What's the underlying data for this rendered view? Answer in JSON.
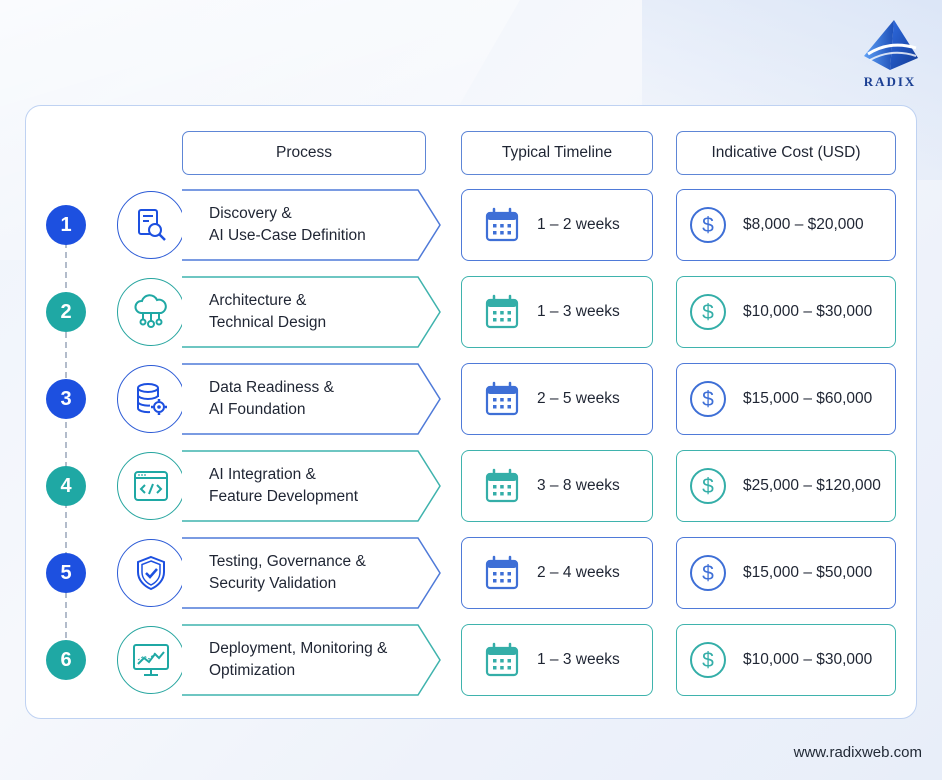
{
  "brand": {
    "logo_text": "RADIX",
    "website": "www.radixweb.com"
  },
  "headers": {
    "process": "Process",
    "timeline": "Typical Timeline",
    "cost": "Indicative Cost (USD)"
  },
  "colors": {
    "blue": "#1d50e0",
    "teal": "#1fa8a4",
    "border_blue": "#4f7ad8",
    "border_teal": "#3fb3ad"
  },
  "steps": [
    {
      "number": "1",
      "theme": "blue",
      "icon": "document-search-icon",
      "line1": "Discovery &",
      "line2": "AI Use-Case Definition",
      "timeline": "1 – 2 weeks",
      "cost": "$8,000 – $20,000"
    },
    {
      "number": "2",
      "theme": "teal",
      "icon": "cloud-network-icon",
      "line1": "Architecture &",
      "line2": "Technical Design",
      "timeline": "1 – 3 weeks",
      "cost": "$10,000 – $30,000"
    },
    {
      "number": "3",
      "theme": "blue",
      "icon": "database-gear-icon",
      "line1": "Data Readiness &",
      "line2": "AI Foundation",
      "timeline": "2 – 5 weeks",
      "cost": "$15,000 – $60,000"
    },
    {
      "number": "4",
      "theme": "teal",
      "icon": "code-window-icon",
      "line1": "AI Integration &",
      "line2": "Feature Development",
      "timeline": "3 – 8 weeks",
      "cost": "$25,000 – $120,000"
    },
    {
      "number": "5",
      "theme": "blue",
      "icon": "shield-check-icon",
      "line1": "Testing, Governance &",
      "line2": "Security Validation",
      "timeline": "2 – 4 weeks",
      "cost": "$15,000 – $50,000"
    },
    {
      "number": "6",
      "theme": "teal",
      "icon": "monitor-chart-icon",
      "line1": "Deployment, Monitoring &",
      "line2": "Optimization",
      "timeline": "1 – 3 weeks",
      "cost": "$10,000 – $30,000"
    }
  ]
}
